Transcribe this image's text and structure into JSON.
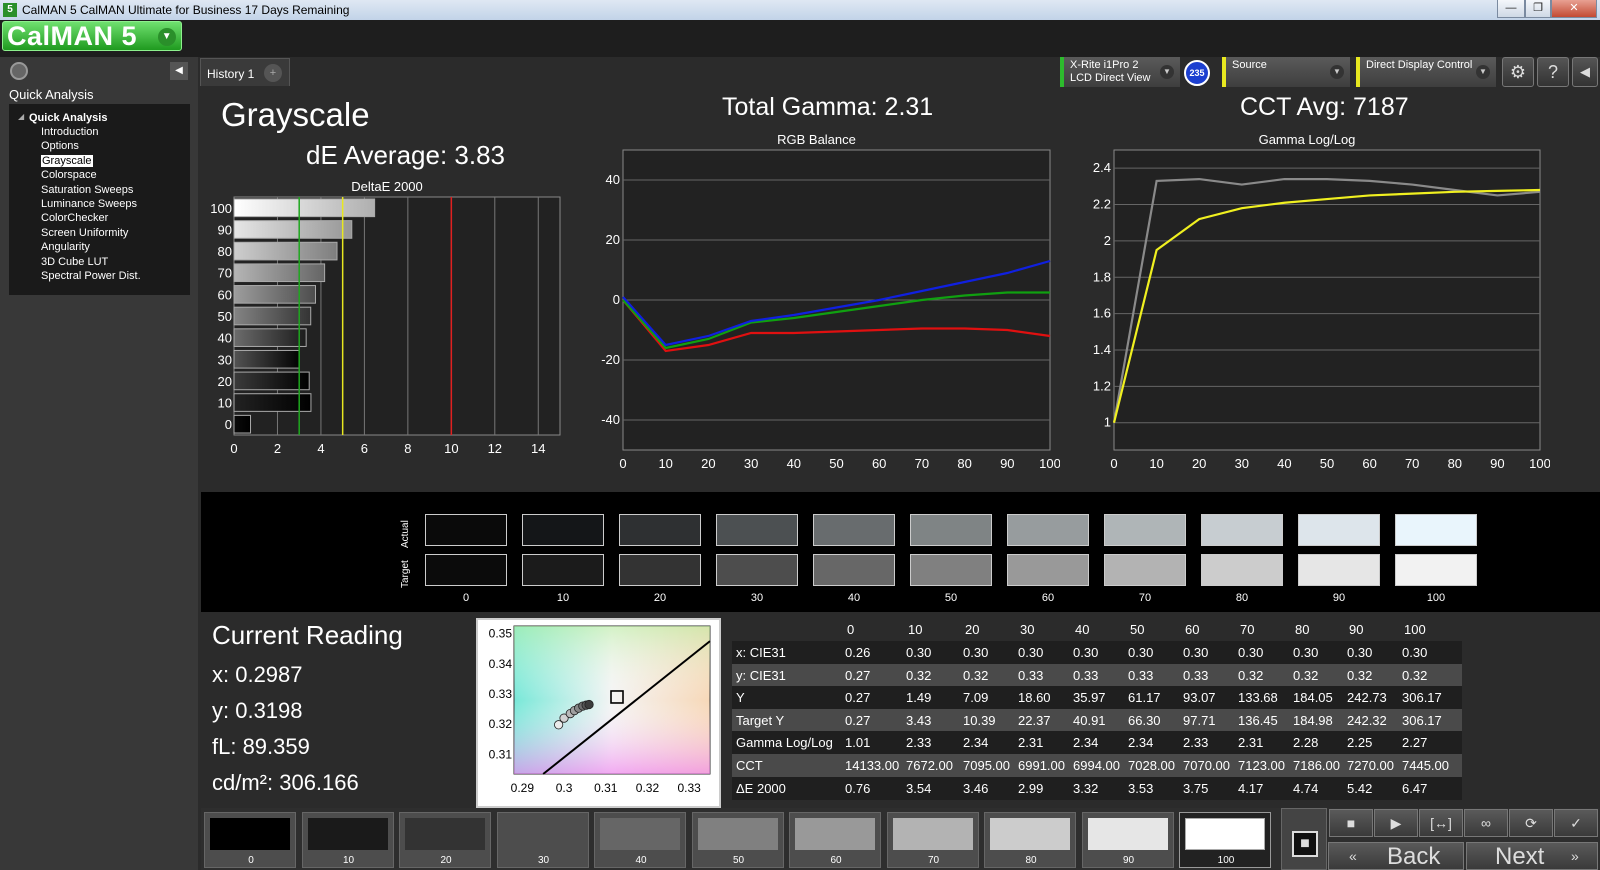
{
  "window": {
    "title": "CalMAN 5 CalMAN Ultimate for Business 17 Days Remaining",
    "icon": "5",
    "min": "—",
    "restore": "❐",
    "close": "✕"
  },
  "app": {
    "logo": "CalMAN 5"
  },
  "sidebar": {
    "heading": "Quick Analysis",
    "root": "Quick Analysis",
    "items": [
      "Introduction",
      "Options",
      "Grayscale",
      "Colorspace",
      "Saturation Sweeps",
      "Luminance Sweeps",
      "ColorChecker",
      "Screen Uniformity",
      "Angularity",
      "3D Cube LUT",
      "Spectral Power Dist."
    ],
    "selected": "Grayscale"
  },
  "tabs": {
    "history": "History 1",
    "plus": "+"
  },
  "devices": {
    "meter_line1": "X-Rite i1Pro 2",
    "meter_line2": "LCD Direct View",
    "badge": "235",
    "source": "Source",
    "display": "Direct Display Control"
  },
  "main": {
    "title": "Grayscale",
    "de_average": "dE Average: 3.83",
    "total_gamma": "Total Gamma: 2.31",
    "cct_avg": "CCT Avg: 7187"
  },
  "chart_data": [
    {
      "type": "bar",
      "title": "DeltaE 2000",
      "categories": [
        "100",
        "90",
        "80",
        "70",
        "60",
        "50",
        "40",
        "30",
        "20",
        "10",
        "0"
      ],
      "values": [
        6.47,
        5.42,
        4.74,
        4.17,
        3.75,
        3.53,
        3.32,
        2.99,
        3.46,
        3.54,
        0.76
      ],
      "xticks": [
        "0",
        "2",
        "4",
        "6",
        "8",
        "10",
        "12",
        "14"
      ],
      "xlim": [
        0,
        15
      ],
      "thresholds": [
        {
          "value": 3,
          "color": "#1fa81f"
        },
        {
          "value": 5,
          "color": "#e8e820"
        },
        {
          "value": 10,
          "color": "#e02020"
        }
      ]
    },
    {
      "type": "line",
      "title": "RGB Balance",
      "x": [
        0,
        10,
        20,
        30,
        40,
        50,
        60,
        70,
        80,
        90,
        100
      ],
      "xticks": [
        "0",
        "10",
        "20",
        "30",
        "40",
        "50",
        "60",
        "70",
        "80",
        "90",
        "100"
      ],
      "yticks": [
        "40",
        "20",
        "0",
        "-20",
        "-40"
      ],
      "ylim": [
        -50,
        50
      ],
      "series": [
        {
          "color": "#e01010",
          "values": [
            0,
            -17,
            -15,
            -11,
            -11,
            -10.5,
            -10,
            -9.5,
            -9.5,
            -10,
            -12
          ]
        },
        {
          "color": "#10a010",
          "values": [
            0,
            -16,
            -13,
            -7.5,
            -6,
            -4,
            -2,
            0,
            1.5,
            2.5,
            2.5
          ]
        },
        {
          "color": "#1020e0",
          "values": [
            1,
            -15,
            -12,
            -7,
            -5,
            -2.5,
            0,
            3,
            6,
            9,
            13
          ]
        }
      ]
    },
    {
      "type": "line",
      "title": "Gamma Log/Log",
      "x": [
        0,
        10,
        20,
        30,
        40,
        50,
        60,
        70,
        80,
        90,
        100
      ],
      "xticks": [
        "0",
        "10",
        "20",
        "30",
        "40",
        "50",
        "60",
        "70",
        "80",
        "90",
        "100"
      ],
      "yticks": [
        "2.4",
        "2.2",
        "2",
        "1.8",
        "1.6",
        "1.4",
        "1.2",
        "1"
      ],
      "ylim": [
        0.85,
        2.5
      ],
      "series": [
        {
          "color": "#8a8a8a",
          "values": [
            1,
            2.33,
            2.34,
            2.31,
            2.34,
            2.34,
            2.33,
            2.31,
            2.28,
            2.25,
            2.27
          ]
        },
        {
          "color": "#f0f020",
          "values": [
            1,
            1.95,
            2.12,
            2.18,
            2.21,
            2.23,
            2.25,
            2.26,
            2.27,
            2.275,
            2.28
          ]
        }
      ]
    },
    {
      "type": "scatter",
      "title": "",
      "xticks": [
        "0.29",
        "0.3",
        "0.31",
        "0.32",
        "0.33"
      ],
      "yticks": [
        "0.35",
        "0.34",
        "0.33",
        "0.32",
        "0.31"
      ],
      "xlim": [
        0.288,
        0.335
      ],
      "ylim": [
        0.3035,
        0.3525
      ],
      "target": {
        "x": 0.3127,
        "y": 0.329
      },
      "points": [
        {
          "x": 0.2987,
          "y": 0.3198
        },
        {
          "x": 0.3,
          "y": 0.322
        },
        {
          "x": 0.3015,
          "y": 0.3235
        },
        {
          "x": 0.3025,
          "y": 0.3245
        },
        {
          "x": 0.3035,
          "y": 0.3253
        },
        {
          "x": 0.3045,
          "y": 0.326
        },
        {
          "x": 0.3053,
          "y": 0.3263
        },
        {
          "x": 0.306,
          "y": 0.3265
        }
      ]
    }
  ],
  "swatches": {
    "labels": [
      "0",
      "10",
      "20",
      "30",
      "40",
      "50",
      "60",
      "70",
      "80",
      "90",
      "100"
    ],
    "actual": [
      "#0a0a0a",
      "#141618",
      "#2e3032",
      "#4c5052",
      "#686c6e",
      "#7f8485",
      "#979c9e",
      "#afb5b7",
      "#c7cdd1",
      "#dde5eb",
      "#e9f5fc"
    ],
    "target": [
      "#0b0b0b",
      "#1b1b1b",
      "#333333",
      "#4d4d4d",
      "#676767",
      "#808080",
      "#999999",
      "#b3b3b3",
      "#cccccc",
      "#e6e6e6",
      "#f2f2f2"
    ],
    "actual_label": "Actual",
    "target_label": "Target"
  },
  "reading": {
    "heading": "Current Reading",
    "x": "x: 0.2987",
    "y": "y: 0.3198",
    "fL": "fL: 89.359",
    "cd": "cd/m²: 306.166"
  },
  "table": {
    "headers": [
      "",
      "0",
      "10",
      "20",
      "30",
      "40",
      "50",
      "60",
      "70",
      "80",
      "90",
      "100"
    ],
    "rows": [
      [
        "x: CIE31",
        "0.26",
        "0.30",
        "0.30",
        "0.30",
        "0.30",
        "0.30",
        "0.30",
        "0.30",
        "0.30",
        "0.30",
        "0.30"
      ],
      [
        "y: CIE31",
        "0.27",
        "0.32",
        "0.32",
        "0.33",
        "0.33",
        "0.33",
        "0.33",
        "0.32",
        "0.32",
        "0.32",
        "0.32"
      ],
      [
        "Y",
        "0.27",
        "1.49",
        "7.09",
        "18.60",
        "35.97",
        "61.17",
        "93.07",
        "133.68",
        "184.05",
        "242.73",
        "306.17"
      ],
      [
        "Target Y",
        "0.27",
        "3.43",
        "10.39",
        "22.37",
        "40.91",
        "66.30",
        "97.71",
        "136.45",
        "184.98",
        "242.32",
        "306.17"
      ],
      [
        "Gamma Log/Log",
        "1.01",
        "2.33",
        "2.34",
        "2.31",
        "2.34",
        "2.34",
        "2.33",
        "2.31",
        "2.28",
        "2.25",
        "2.27"
      ],
      [
        "CCT",
        "14133.00",
        "7672.00",
        "7095.00",
        "6991.00",
        "6994.00",
        "7028.00",
        "7070.00",
        "7123.00",
        "7186.00",
        "7270.00",
        "7445.00"
      ],
      [
        "ΔE 2000",
        "0.76",
        "3.54",
        "3.46",
        "2.99",
        "3.32",
        "3.53",
        "3.75",
        "4.17",
        "4.74",
        "5.42",
        "6.47"
      ]
    ]
  },
  "bottom": {
    "labels": [
      "0",
      "10",
      "20",
      "30",
      "40",
      "50",
      "60",
      "70",
      "80",
      "90",
      "100"
    ],
    "colors": [
      "#000000",
      "#1a1a1a",
      "#333333",
      "#4d4d4d",
      "#666666",
      "#808080",
      "#999999",
      "#b3b3b3",
      "#cccccc",
      "#e6e6e6",
      "#ffffff"
    ],
    "back": "Back",
    "next": "Next",
    "controls": [
      "■",
      "▶",
      "[↔]",
      "∞",
      "⟳",
      "✓"
    ],
    "stop_icon": "■"
  }
}
